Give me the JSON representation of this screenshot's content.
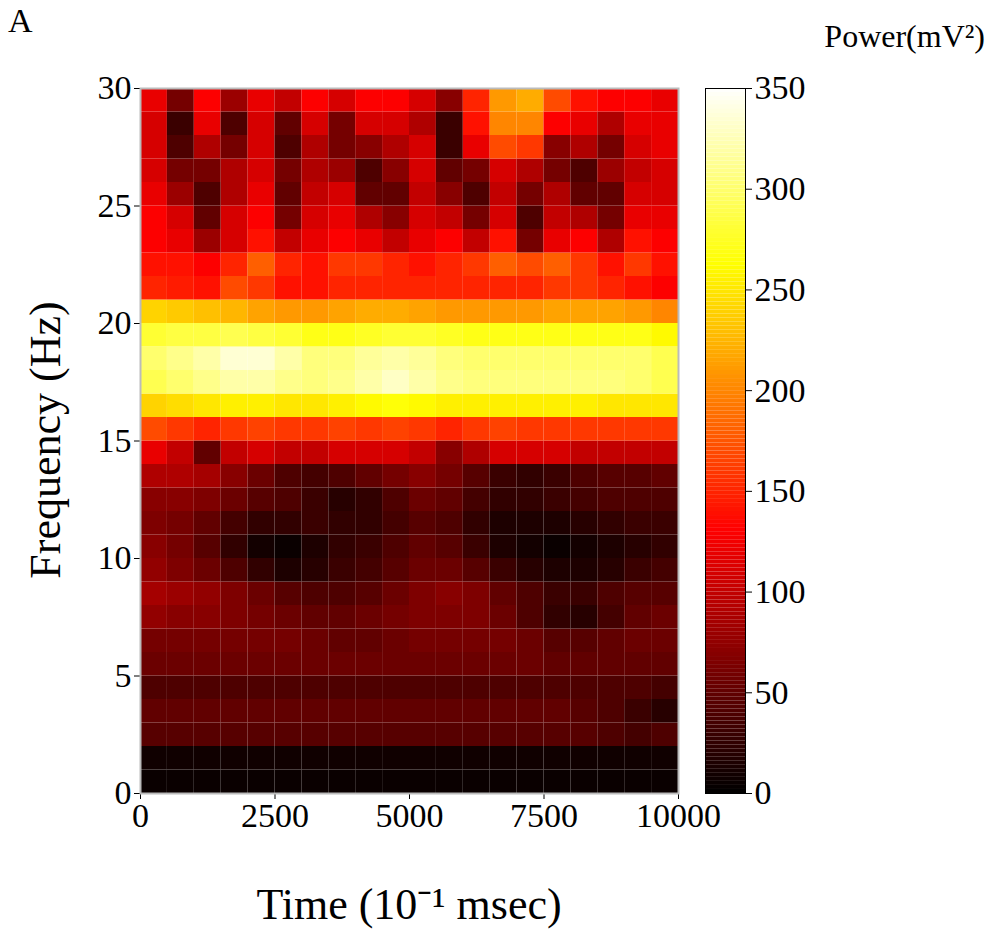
{
  "chart_data": {
    "type": "heatmap",
    "panel_label": "A",
    "x_label": "Time (10⁻¹ msec)",
    "y_label": "Frequency (Hz)",
    "xlim": [
      0,
      10000
    ],
    "xticks": [
      0,
      2500,
      5000,
      7500,
      10000
    ],
    "ylim": [
      0,
      30
    ],
    "yticks": [
      0,
      5,
      10,
      15,
      20,
      25,
      30
    ],
    "color": "hot",
    "x_edges": [
      0,
      500,
      1000,
      1500,
      2000,
      2500,
      3000,
      3500,
      4000,
      4500,
      5000,
      5500,
      6000,
      6500,
      7000,
      7500,
      8000,
      8500,
      9000,
      9500,
      10000
    ],
    "y_edges": [
      0,
      1,
      2,
      3,
      4,
      5,
      6,
      7,
      8,
      9,
      10,
      11,
      12,
      13,
      14,
      15,
      16,
      17,
      18,
      19,
      20,
      21,
      22,
      23,
      24,
      25,
      26,
      27,
      28,
      29,
      30
    ],
    "values": [
      [
        5,
        5,
        5,
        5,
        5,
        5,
        5,
        5,
        5,
        5,
        5,
        5,
        5,
        5,
        5,
        5,
        5,
        5,
        5,
        5
      ],
      [
        8,
        8,
        8,
        8,
        8,
        8,
        8,
        8,
        8,
        8,
        8,
        8,
        8,
        8,
        8,
        8,
        8,
        8,
        8,
        8
      ],
      [
        45,
        45,
        45,
        45,
        45,
        45,
        45,
        45,
        45,
        45,
        45,
        45,
        45,
        45,
        45,
        45,
        45,
        40,
        35,
        40
      ],
      [
        50,
        50,
        50,
        50,
        50,
        50,
        50,
        50,
        50,
        50,
        50,
        50,
        50,
        50,
        50,
        50,
        45,
        40,
        30,
        20
      ],
      [
        40,
        40,
        40,
        40,
        40,
        40,
        40,
        40,
        40,
        40,
        40,
        40,
        40,
        40,
        40,
        40,
        40,
        40,
        40,
        35
      ],
      [
        55,
        55,
        55,
        55,
        55,
        55,
        55,
        55,
        55,
        55,
        55,
        55,
        55,
        55,
        55,
        50,
        50,
        50,
        50,
        50
      ],
      [
        60,
        60,
        60,
        60,
        60,
        60,
        55,
        50,
        50,
        55,
        60,
        60,
        60,
        60,
        55,
        45,
        45,
        50,
        55,
        55
      ],
      [
        75,
        70,
        70,
        65,
        60,
        55,
        50,
        50,
        55,
        60,
        65,
        65,
        65,
        55,
        40,
        25,
        20,
        35,
        50,
        55
      ],
      [
        85,
        80,
        75,
        65,
        55,
        45,
        40,
        40,
        45,
        55,
        65,
        70,
        65,
        50,
        40,
        30,
        30,
        40,
        45,
        45
      ],
      [
        75,
        65,
        55,
        40,
        25,
        15,
        20,
        30,
        35,
        45,
        55,
        55,
        45,
        30,
        20,
        15,
        15,
        20,
        30,
        35
      ],
      [
        70,
        60,
        45,
        25,
        10,
        5,
        15,
        25,
        30,
        40,
        50,
        45,
        30,
        15,
        10,
        5,
        10,
        15,
        20,
        25
      ],
      [
        65,
        60,
        50,
        35,
        25,
        25,
        30,
        25,
        25,
        35,
        45,
        40,
        25,
        15,
        15,
        15,
        20,
        25,
        30,
        30
      ],
      [
        70,
        70,
        65,
        55,
        45,
        40,
        30,
        20,
        25,
        40,
        55,
        50,
        35,
        25,
        25,
        30,
        35,
        40,
        40,
        40
      ],
      [
        90,
        90,
        85,
        70,
        55,
        40,
        35,
        40,
        50,
        60,
        70,
        60,
        45,
        30,
        25,
        30,
        40,
        45,
        45,
        50
      ],
      [
        120,
        100,
        50,
        100,
        110,
        100,
        100,
        110,
        110,
        110,
        100,
        70,
        90,
        110,
        110,
        110,
        100,
        100,
        100,
        100
      ],
      [
        170,
        160,
        150,
        160,
        165,
        160,
        160,
        165,
        160,
        165,
        160,
        150,
        160,
        165,
        160,
        160,
        160,
        160,
        160,
        160
      ],
      [
        240,
        245,
        250,
        255,
        255,
        250,
        250,
        255,
        260,
        265,
        260,
        255,
        255,
        255,
        255,
        255,
        255,
        250,
        250,
        250
      ],
      [
        290,
        300,
        310,
        320,
        320,
        310,
        305,
        310,
        320,
        330,
        320,
        310,
        305,
        305,
        305,
        305,
        305,
        305,
        300,
        290
      ],
      [
        300,
        310,
        320,
        335,
        335,
        320,
        305,
        305,
        315,
        320,
        315,
        305,
        300,
        300,
        300,
        300,
        300,
        300,
        300,
        290
      ],
      [
        280,
        285,
        285,
        290,
        285,
        280,
        270,
        270,
        275,
        280,
        280,
        275,
        270,
        270,
        270,
        270,
        270,
        270,
        270,
        260
      ],
      [
        240,
        235,
        230,
        225,
        215,
        210,
        210,
        215,
        220,
        220,
        215,
        210,
        210,
        210,
        210,
        215,
        215,
        215,
        210,
        200
      ],
      [
        150,
        145,
        140,
        170,
        160,
        140,
        140,
        150,
        150,
        150,
        150,
        150,
        150,
        150,
        150,
        160,
        160,
        150,
        140,
        130
      ],
      [
        140,
        140,
        130,
        150,
        180,
        150,
        140,
        160,
        160,
        150,
        140,
        150,
        160,
        180,
        170,
        180,
        160,
        140,
        160,
        140
      ],
      [
        130,
        120,
        80,
        110,
        140,
        100,
        120,
        130,
        120,
        100,
        120,
        130,
        100,
        140,
        60,
        120,
        130,
        90,
        140,
        130
      ],
      [
        130,
        110,
        50,
        110,
        130,
        60,
        110,
        120,
        90,
        70,
        110,
        100,
        60,
        110,
        40,
        100,
        90,
        60,
        120,
        120
      ],
      [
        120,
        80,
        40,
        90,
        120,
        50,
        100,
        110,
        50,
        50,
        100,
        70,
        40,
        100,
        60,
        90,
        50,
        50,
        110,
        110
      ],
      [
        110,
        60,
        60,
        90,
        110,
        60,
        90,
        80,
        40,
        70,
        110,
        50,
        60,
        110,
        90,
        60,
        40,
        80,
        100,
        110
      ],
      [
        110,
        40,
        90,
        60,
        110,
        40,
        90,
        60,
        70,
        90,
        110,
        30,
        120,
        170,
        160,
        70,
        90,
        60,
        110,
        120
      ],
      [
        110,
        30,
        120,
        40,
        110,
        50,
        110,
        60,
        110,
        110,
        90,
        30,
        140,
        200,
        200,
        130,
        120,
        90,
        120,
        120
      ],
      [
        120,
        60,
        130,
        80,
        120,
        100,
        130,
        110,
        130,
        130,
        110,
        70,
        150,
        210,
        220,
        170,
        140,
        130,
        130,
        120
      ]
    ],
    "colorbar": {
      "label": "Power(mV²)",
      "range": [
        0,
        350
      ],
      "ticks": [
        0,
        50,
        100,
        150,
        200,
        250,
        300,
        350
      ]
    }
  }
}
